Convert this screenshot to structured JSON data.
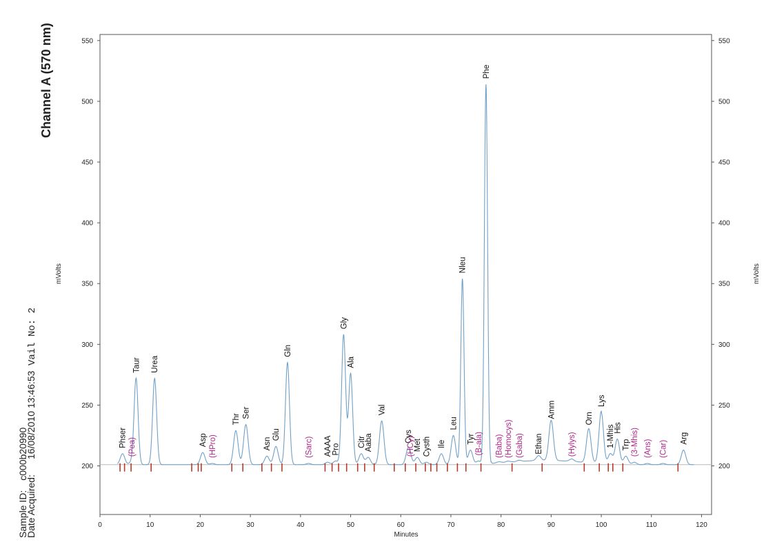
{
  "header": {
    "channel_title": "Channel A (570 nm)",
    "left_info_label1": "Sample ID:",
    "left_info_value1": "c000b20990",
    "left_info_label2": "Date Acquired:",
    "left_info_value2": "16/08/2010 13:46:53",
    "left_info_vial": "Vail No: 2"
  },
  "chart_data": {
    "type": "line",
    "title": "Channel A (570 nm)",
    "xlabel": "Minutes",
    "ylabel_left": "mVolts",
    "ylabel_right": "mVolts",
    "xlim": [
      0,
      122
    ],
    "ylim": [
      160,
      555
    ],
    "x_ticks": [
      0,
      10,
      20,
      30,
      40,
      50,
      60,
      70,
      80,
      90,
      100,
      110,
      120
    ],
    "y_ticks": [
      200,
      250,
      300,
      350,
      400,
      450,
      500,
      550
    ],
    "baseline": 201,
    "trace_color": "#6fa0c8",
    "marker_color": "#b53a2a",
    "peaks": [
      {
        "label": "Phser",
        "time": 4.5,
        "height": 210,
        "color": "black"
      },
      {
        "label": "(Pea)",
        "time": 6.3,
        "height": 203,
        "color": "magenta"
      },
      {
        "label": "Taur",
        "time": 7.2,
        "height": 272,
        "color": "black"
      },
      {
        "label": "Urea",
        "time": 10.9,
        "height": 272,
        "color": "black"
      },
      {
        "label": "Asp",
        "time": 20.5,
        "height": 211,
        "color": "black"
      },
      {
        "label": "(HPro)",
        "time": 22.4,
        "height": 202,
        "color": "magenta"
      },
      {
        "label": "Thr",
        "time": 27.1,
        "height": 229,
        "color": "black"
      },
      {
        "label": "Ser",
        "time": 29.1,
        "height": 234,
        "color": "black"
      },
      {
        "label": "Asn",
        "time": 33.3,
        "height": 208,
        "color": "black"
      },
      {
        "label": "Glu",
        "time": 35.1,
        "height": 216,
        "color": "black"
      },
      {
        "label": "Gln",
        "time": 37.4,
        "height": 285,
        "color": "black"
      },
      {
        "label": "(Sarc)",
        "time": 41.6,
        "height": 202,
        "color": "magenta"
      },
      {
        "label": "AAAA",
        "time": 45.4,
        "height": 203,
        "color": "black"
      },
      {
        "label": "Pro",
        "time": 47.0,
        "height": 204,
        "color": "black"
      },
      {
        "label": "Gly",
        "time": 48.6,
        "height": 308,
        "color": "black"
      },
      {
        "label": "Ala",
        "time": 50.0,
        "height": 276,
        "color": "black"
      },
      {
        "label": "Citr",
        "time": 52.1,
        "height": 210,
        "color": "black"
      },
      {
        "label": "Aaba",
        "time": 53.5,
        "height": 207,
        "color": "black"
      },
      {
        "label": "Val",
        "time": 56.2,
        "height": 237,
        "color": "black"
      },
      {
        "label": "Cys",
        "time": 61.5,
        "height": 214,
        "color": "black"
      },
      {
        "label": "(HCy)",
        "time": 61.9,
        "height": 203,
        "color": "magenta"
      },
      {
        "label": "Met",
        "time": 63.3,
        "height": 207,
        "color": "black"
      },
      {
        "label": "Cysth",
        "time": 65.1,
        "height": 203,
        "color": "black"
      },
      {
        "label": "Ile",
        "time": 68.1,
        "height": 210,
        "color": "black"
      },
      {
        "label": "Leu",
        "time": 70.5,
        "height": 225,
        "color": "black"
      },
      {
        "label": "Nleu",
        "time": 72.3,
        "height": 354,
        "color": "black"
      },
      {
        "label": "Tyr",
        "time": 73.9,
        "height": 213,
        "color": "black"
      },
      {
        "label": "(B-ala)",
        "time": 75.5,
        "height": 204,
        "color": "magenta"
      },
      {
        "label": "Phe",
        "time": 77.0,
        "height": 514,
        "color": "black"
      },
      {
        "label": "(Baba)",
        "time": 79.6,
        "height": 202,
        "color": "magenta"
      },
      {
        "label": "(Homocys)",
        "time": 81.4,
        "height": 202,
        "color": "magenta"
      },
      {
        "label": "(Gaba)",
        "time": 83.6,
        "height": 202,
        "color": "magenta"
      },
      {
        "label": "Ethan",
        "time": 87.5,
        "height": 205,
        "color": "black"
      },
      {
        "label": "Amm",
        "time": 90.0,
        "height": 234,
        "color": "black"
      },
      {
        "label": "(Hylys)",
        "time": 94.1,
        "height": 203,
        "color": "magenta"
      },
      {
        "label": "Orn",
        "time": 97.5,
        "height": 229,
        "color": "black"
      },
      {
        "label": "Lys",
        "time": 100.0,
        "height": 244,
        "color": "black"
      },
      {
        "label": "1-Mhis",
        "time": 101.8,
        "height": 210,
        "color": "black"
      },
      {
        "label": "His",
        "time": 103.2,
        "height": 222,
        "color": "black"
      },
      {
        "label": "Trp",
        "time": 104.9,
        "height": 208,
        "color": "black"
      },
      {
        "label": "(3-Mhis)",
        "time": 106.6,
        "height": 203,
        "color": "magenta"
      },
      {
        "label": "(Ans)",
        "time": 109.2,
        "height": 202,
        "color": "magenta"
      },
      {
        "label": "(Car)",
        "time": 112.3,
        "height": 202,
        "color": "magenta"
      },
      {
        "label": "Arg",
        "time": 116.4,
        "height": 213,
        "color": "black"
      }
    ],
    "markers": [
      4.0,
      4.9,
      6.2,
      10.2,
      18.3,
      19.6,
      20.2,
      26.3,
      28.5,
      32.3,
      34.2,
      36.3,
      44.9,
      46.3,
      47.6,
      49.2,
      51.4,
      52.8,
      54.7,
      58.7,
      60.9,
      63.0,
      64.9,
      66.0,
      67.2,
      69.3,
      71.3,
      73.0,
      76.0,
      82.2,
      88.2,
      96.6,
      99.6,
      101.4,
      102.3,
      104.3,
      115.3
    ]
  }
}
